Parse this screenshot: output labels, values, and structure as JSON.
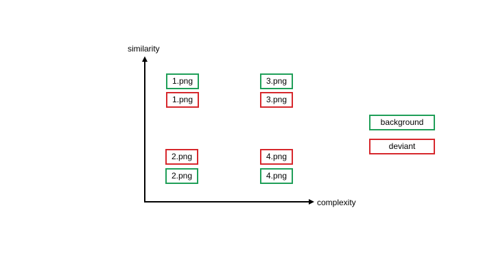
{
  "axes": {
    "y_label": "similarity",
    "x_label": "complexity"
  },
  "colors": {
    "background": "#1e9e57",
    "deviant": "#d6262b",
    "axis": "#000000"
  },
  "cells": {
    "top_left": {
      "background": "1.png",
      "deviant": "1.png"
    },
    "top_right": {
      "background": "3.png",
      "deviant": "3.png"
    },
    "bottom_left": {
      "deviant": "2.png",
      "background": "2.png"
    },
    "bottom_right": {
      "deviant": "4.png",
      "background": "4.png"
    }
  },
  "legend": {
    "background_label": "background",
    "deviant_label": "deviant"
  }
}
